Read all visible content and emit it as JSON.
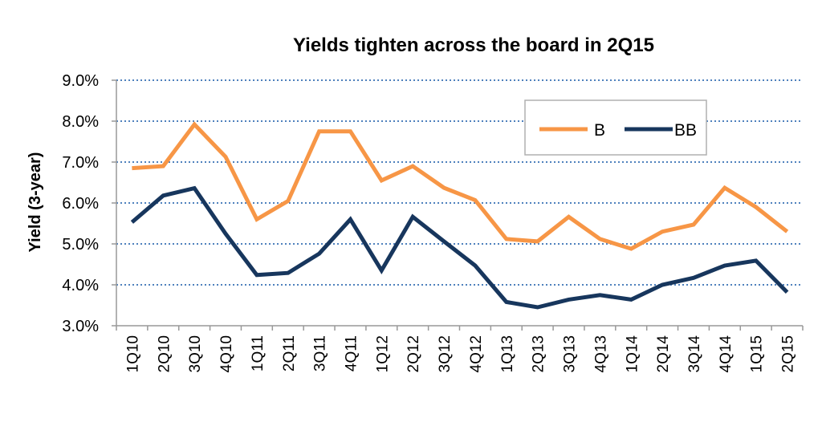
{
  "chart_data": {
    "type": "line",
    "title": "Yields tighten across the board in 2Q15",
    "xlabel": "",
    "ylabel": "Yield (3-year)",
    "ylim": [
      0.03,
      0.09
    ],
    "yticks": [
      "3.0%",
      "4.0%",
      "5.0%",
      "6.0%",
      "7.0%",
      "8.0%",
      "9.0%"
    ],
    "grid": true,
    "legend_position": "top-right",
    "categories": [
      "1Q10",
      "2Q10",
      "3Q10",
      "4Q10",
      "1Q11",
      "2Q11",
      "3Q11",
      "4Q11",
      "1Q12",
      "2Q12",
      "3Q12",
      "4Q12",
      "1Q13",
      "2Q13",
      "3Q13",
      "4Q13",
      "1Q14",
      "2Q14",
      "3Q14",
      "4Q14",
      "1Q15",
      "2Q15"
    ],
    "series": [
      {
        "name": "B",
        "color": "#F79646",
        "values": [
          0.0685,
          0.069,
          0.0792,
          0.0713,
          0.056,
          0.0605,
          0.0775,
          0.0775,
          0.0655,
          0.069,
          0.0637,
          0.0607,
          0.0512,
          0.0506,
          0.0566,
          0.0512,
          0.0488,
          0.053,
          0.0547,
          0.0637,
          0.059,
          0.053
        ]
      },
      {
        "name": "BB",
        "color": "#17365D",
        "values": [
          0.0553,
          0.0618,
          0.0636,
          0.0525,
          0.0424,
          0.0429,
          0.0476,
          0.056,
          0.0435,
          0.0566,
          0.0506,
          0.0447,
          0.0358,
          0.0345,
          0.0364,
          0.0375,
          0.0364,
          0.04,
          0.0417,
          0.0447,
          0.0459,
          0.0382
        ]
      }
    ]
  }
}
